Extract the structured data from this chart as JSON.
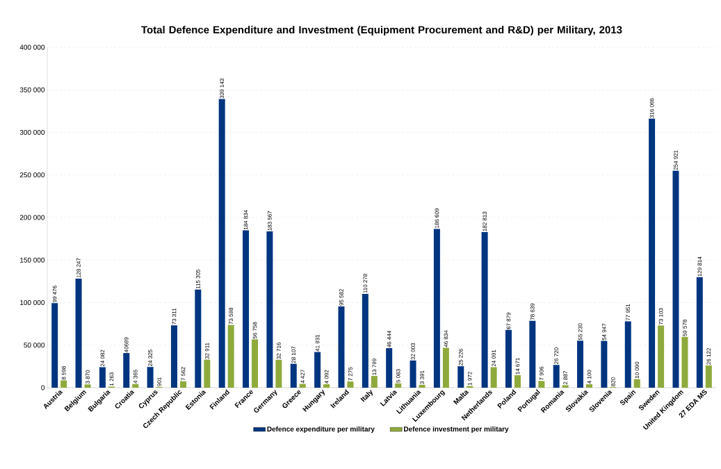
{
  "chart_data": {
    "type": "bar",
    "title": "Total Defence Expenditure and Investment (Equipment Procurement and R&D) per Military, 2013",
    "categories": [
      "Austria",
      "Belgium",
      "Bulgaria",
      "Croatia",
      "Cyprus",
      "Czech Republic",
      "Estonia",
      "Finland",
      "France",
      "Germany",
      "Greece",
      "Hungary",
      "Ireland",
      "Italy",
      "Latvia",
      "Lithuania",
      "Luxembourg",
      "Malta",
      "Netherlands",
      "Poland",
      "Portugal",
      "Romania",
      "Slovakia",
      "Slovenia",
      "Spain",
      "Sweden",
      "United Kingdom",
      "27 EDA MS"
    ],
    "series": [
      {
        "name": "Defence expenditure per military",
        "color": "#003580",
        "values": [
          99476,
          128247,
          24082,
          40699,
          24325,
          73311,
          115305,
          339143,
          184834,
          183567,
          28107,
          41931,
          95582,
          110278,
          46444,
          32003,
          186609,
          25226,
          182813,
          67879,
          78639,
          26720,
          55230,
          54947,
          77951,
          316066,
          254921,
          129814
        ],
        "value_labels": [
          "99 476",
          "128 247",
          "24 082",
          "40699",
          "24 325",
          "73 311",
          "115 305",
          "339 143",
          "184 834",
          "183 567",
          "28 107",
          "41 931",
          "95 582",
          "110 278",
          "46 444",
          "32 003",
          "186 609",
          "25 226",
          "182 813",
          "67 879",
          "78 639",
          "26 720",
          "55 230",
          "54 947",
          "77 951",
          "316 066",
          "254 921",
          "129 814"
        ]
      },
      {
        "name": "Defence investment per military",
        "color": "#8faa3c",
        "values": [
          8598,
          3870,
          1263,
          4365,
          901,
          7562,
          32911,
          73598,
          56758,
          32716,
          4427,
          4092,
          7275,
          13799,
          5083,
          3391,
          46834,
          1972,
          24091,
          14671,
          7906,
          2887,
          4100,
          820,
          10090,
          73103,
          59578,
          26122
        ],
        "value_labels": [
          "8 598",
          "3 870",
          "1 263",
          "4 365",
          "901",
          "7 562",
          "32 911",
          "73 598",
          "56 758",
          "32 716",
          "4 427",
          "4 092",
          "7 275",
          "13 799",
          "5 083",
          "3 391",
          "46 834",
          "1 972",
          "24 091",
          "14 671",
          "7 906",
          "2 887",
          "4 100",
          "820",
          "10 090",
          "73 103",
          "59 578",
          "26 122"
        ]
      }
    ],
    "ylim": [
      0,
      400000
    ],
    "yticks": [
      0,
      {
        "value": 50000,
        "label": "50 000"
      },
      {
        "value": 100000,
        "label": "100 000"
      },
      {
        "value": 150000,
        "label": "150 000"
      },
      {
        "value": 200000,
        "label": "200 000"
      },
      {
        "value": 250000,
        "label": "250 000"
      },
      {
        "value": 300000,
        "label": "300 000"
      },
      {
        "value": 350000,
        "label": "350 000"
      },
      {
        "value": 400000,
        "label": "400 000"
      }
    ],
    "grid": "y",
    "legend": "bottom"
  }
}
